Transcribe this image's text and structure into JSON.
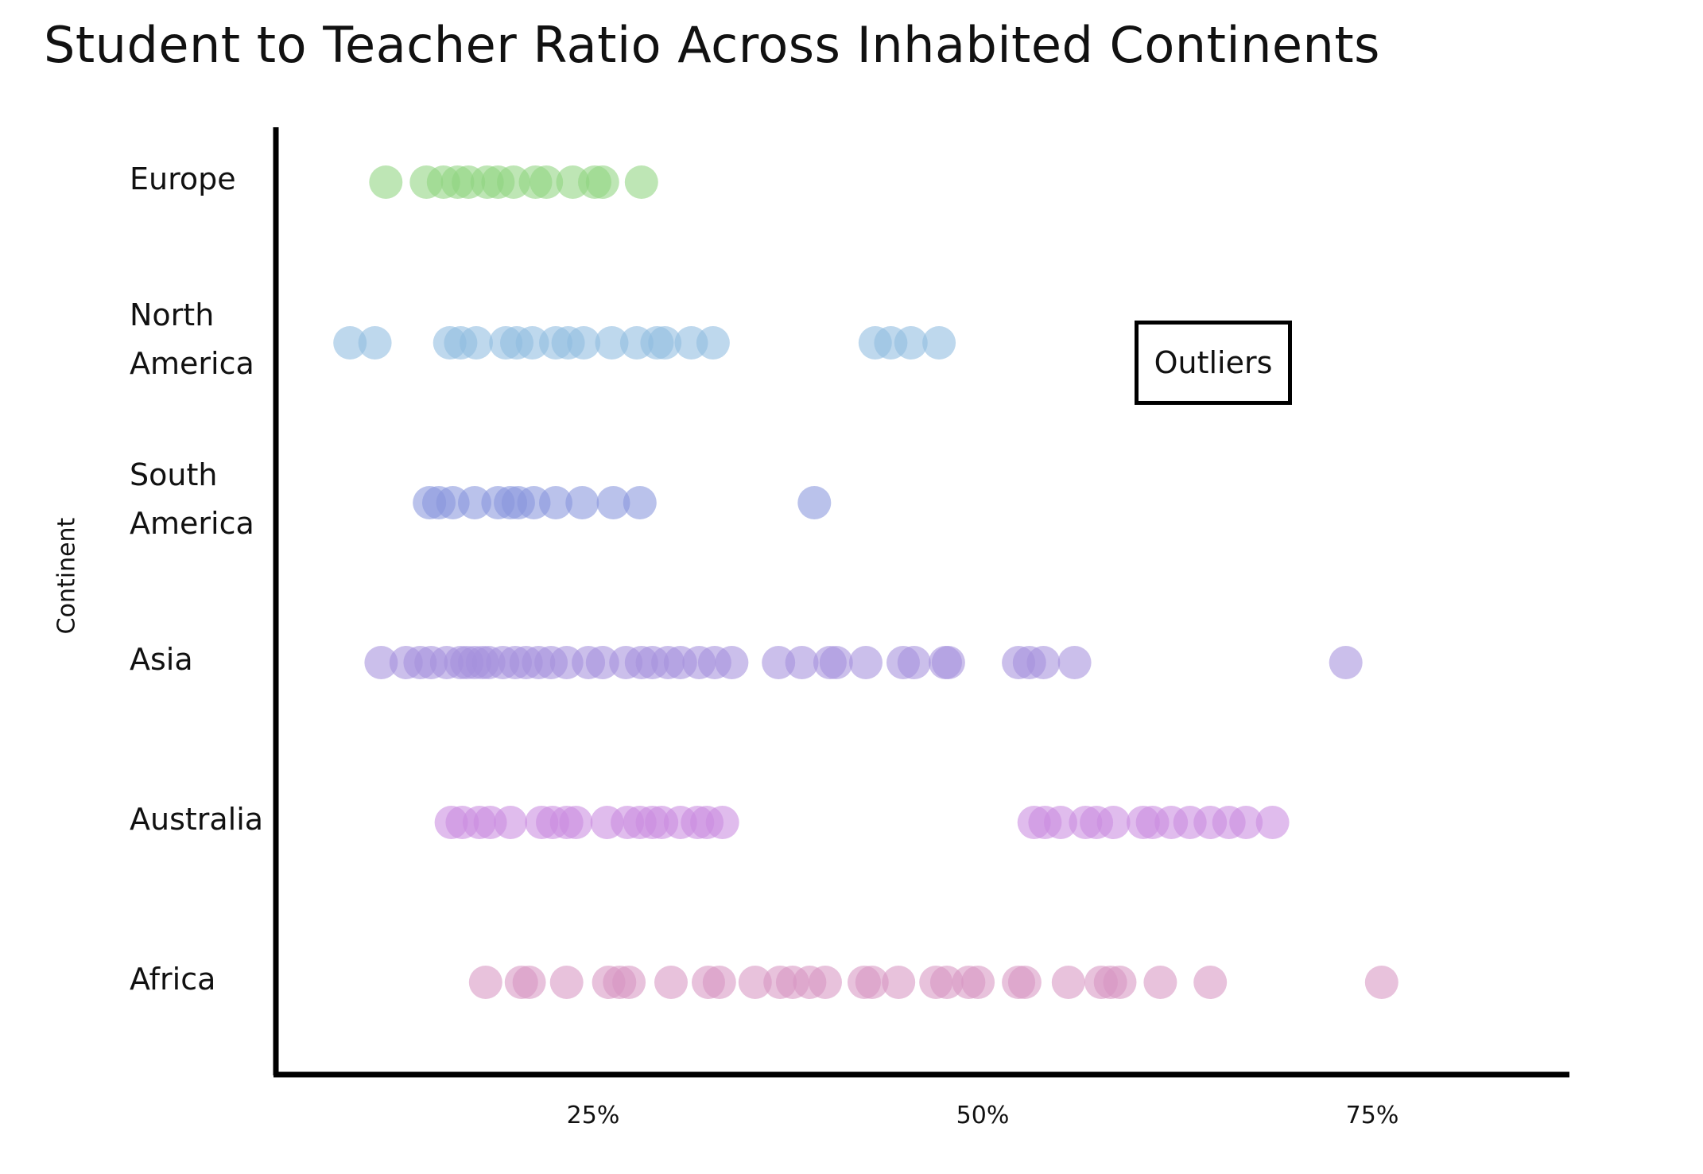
{
  "chart_data": {
    "type": "scatter",
    "title": "Student to Teacher Ratio Across Inhabited Continents",
    "ylabel": "Continent",
    "xlabel": "",
    "xlim": [
      5,
      90
    ],
    "x_ticks": [
      {
        "value": 25,
        "label": "25%"
      },
      {
        "value": 50,
        "label": "50%"
      },
      {
        "value": 75,
        "label": "75%"
      }
    ],
    "grid": false,
    "legend": "none",
    "annotation": {
      "text": "Outliers"
    },
    "series": [
      {
        "category": "Europe",
        "label_lines": [
          "Europe"
        ],
        "color": "#8fd47f",
        "values": [
          11.7,
          14.3,
          15.4,
          16.3,
          17.0,
          18.2,
          18.9,
          19.9,
          21.3,
          22.0,
          23.7,
          25.1,
          25.6,
          28.1
        ]
      },
      {
        "category": "North America",
        "label_lines": [
          "North",
          "America"
        ],
        "color": "#8fbbe0",
        "values": [
          9.4,
          11.0,
          15.8,
          16.5,
          17.5,
          19.4,
          20.1,
          21.1,
          22.6,
          23.4,
          24.4,
          26.2,
          27.8,
          29.1,
          29.6,
          31.3,
          32.7,
          43.1,
          44.1,
          45.4,
          47.2
        ]
      },
      {
        "category": "South America",
        "label_lines": [
          "South",
          "America"
        ],
        "color": "#8896dd",
        "values": [
          14.5,
          15.1,
          16.0,
          17.4,
          18.9,
          19.7,
          20.2,
          21.2,
          22.6,
          24.3,
          26.3,
          28.0,
          39.2
        ]
      },
      {
        "category": "Asia",
        "label_lines": [
          "Asia"
        ],
        "color": "#a591dc",
        "values": [
          11.4,
          13.0,
          13.9,
          14.6,
          15.6,
          16.5,
          16.9,
          17.4,
          17.9,
          18.3,
          19.2,
          20.0,
          20.7,
          21.5,
          22.3,
          23.3,
          24.7,
          25.6,
          27.1,
          28.1,
          28.8,
          29.8,
          30.6,
          31.8,
          32.8,
          33.9,
          36.9,
          38.4,
          40.2,
          40.6,
          42.5,
          44.9,
          45.6,
          47.6,
          47.8,
          52.3,
          53.0,
          53.9,
          55.9,
          73.3
        ]
      },
      {
        "category": "Australia",
        "label_lines": [
          "Australia"
        ],
        "color": "#c98ce0",
        "values": [
          15.9,
          16.6,
          17.7,
          18.4,
          19.7,
          21.7,
          22.4,
          23.3,
          23.9,
          25.9,
          27.2,
          28.0,
          28.8,
          29.4,
          30.6,
          31.7,
          32.3,
          33.3,
          53.3,
          54.0,
          55.0,
          56.6,
          57.3,
          58.4,
          60.3,
          60.9,
          62.1,
          63.3,
          64.6,
          65.8,
          66.9,
          68.6
        ]
      },
      {
        "category": "Africa",
        "label_lines": [
          "Africa"
        ],
        "color": "#d796c2",
        "values": [
          18.1,
          20.4,
          20.9,
          23.3,
          26.0,
          26.7,
          27.3,
          30.0,
          32.4,
          33.1,
          35.4,
          37.0,
          37.8,
          38.9,
          39.9,
          42.4,
          42.9,
          44.6,
          47.0,
          47.7,
          49.1,
          49.7,
          52.3,
          52.7,
          55.5,
          57.6,
          58.2,
          58.8,
          61.4,
          64.6,
          75.6
        ]
      }
    ]
  }
}
